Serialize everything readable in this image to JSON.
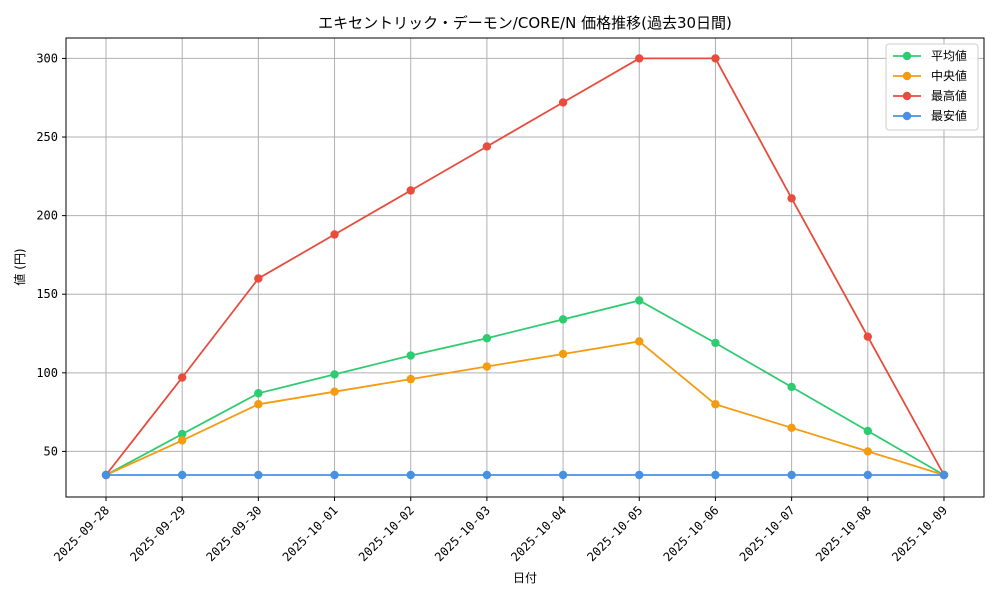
{
  "chart_data": {
    "type": "line",
    "title": "エキセントリック・デーモン/CORE/N 価格推移(過去30日間)",
    "xlabel": "日付",
    "ylabel": "値 (円)",
    "categories": [
      "2025-09-28",
      "2025-09-29",
      "2025-09-30",
      "2025-10-01",
      "2025-10-02",
      "2025-10-03",
      "2025-10-04",
      "2025-10-05",
      "2025-10-06",
      "2025-10-07",
      "2025-10-08",
      "2025-10-09"
    ],
    "ylim": [
      21,
      313
    ],
    "yticks": [
      50,
      100,
      150,
      200,
      250,
      300
    ],
    "grid": true,
    "legend_position": "top-right",
    "series": [
      {
        "name": "平均値",
        "color": "#2ecc71",
        "values": [
          35,
          61,
          87,
          99,
          111,
          122,
          134,
          146,
          119,
          91,
          63,
          35
        ]
      },
      {
        "name": "中央値",
        "color": "#f39c12",
        "values": [
          35,
          57,
          80,
          88,
          96,
          104,
          112,
          120,
          80,
          65,
          50,
          35
        ]
      },
      {
        "name": "最高値",
        "color": "#e74c3c",
        "values": [
          35,
          97,
          160,
          188,
          216,
          244,
          272,
          300,
          300,
          211,
          123,
          35
        ]
      },
      {
        "name": "最安値",
        "color": "#4a90e2",
        "values": [
          35,
          35,
          35,
          35,
          35,
          35,
          35,
          35,
          35,
          35,
          35,
          35
        ]
      }
    ]
  }
}
